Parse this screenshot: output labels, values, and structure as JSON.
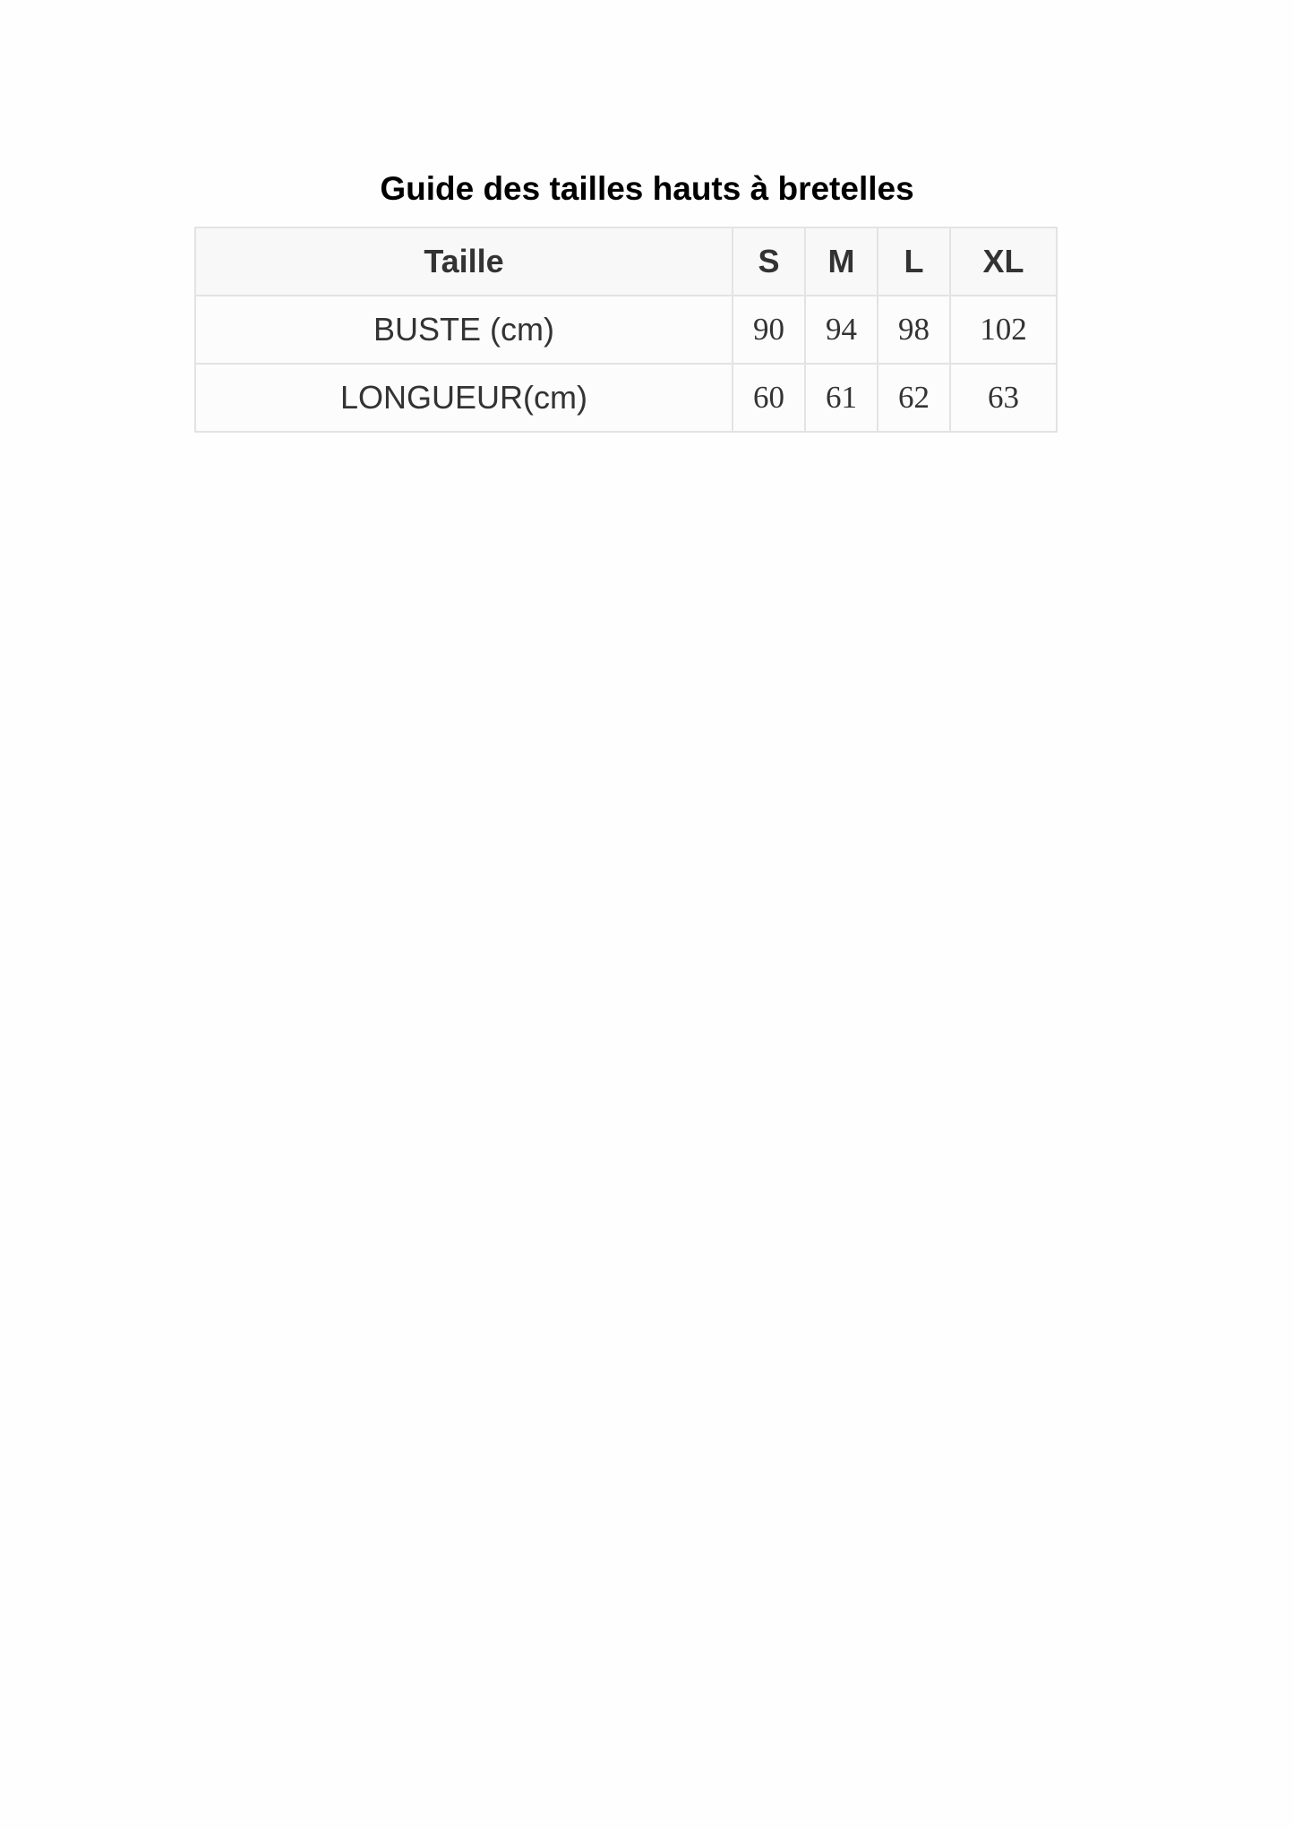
{
  "title": "Guide des tailles hauts à bretelles",
  "table": {
    "header": [
      "Taille",
      "S",
      "M",
      "L",
      "XL"
    ],
    "rows": [
      [
        "BUSTE (cm)",
        "90",
        "94",
        "98",
        "102"
      ],
      [
        "LONGUEUR(cm)",
        "60",
        "61",
        "62",
        "63"
      ]
    ]
  }
}
